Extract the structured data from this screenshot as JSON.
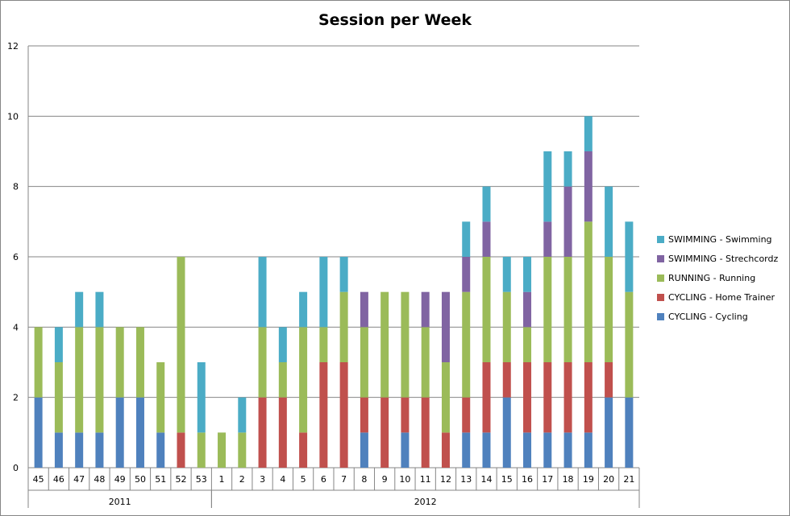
{
  "chart_data": {
    "type": "bar",
    "stacked": true,
    "title": "Session per Week",
    "xlabel": "",
    "ylabel": "",
    "ylim": [
      0,
      12
    ],
    "yticks": [
      0,
      2,
      4,
      6,
      8,
      10,
      12
    ],
    "grid": true,
    "legend_position": "right",
    "categories": [
      "45",
      "46",
      "47",
      "48",
      "49",
      "50",
      "51",
      "52",
      "53",
      "1",
      "2",
      "3",
      "4",
      "5",
      "6",
      "7",
      "8",
      "9",
      "10",
      "11",
      "12",
      "13",
      "14",
      "15",
      "16",
      "17",
      "18",
      "19",
      "20",
      "21"
    ],
    "groups": [
      {
        "label": "2011",
        "start": 0,
        "count": 9
      },
      {
        "label": "2012",
        "start": 9,
        "count": 21
      }
    ],
    "series": [
      {
        "name": "CYCLING - Cycling",
        "color": "#4F81BD",
        "values": [
          2,
          1,
          1,
          1,
          2,
          2,
          1,
          0,
          0,
          0,
          0,
          0,
          0,
          0,
          0,
          0,
          1,
          0,
          1,
          0,
          0,
          1,
          1,
          2,
          1,
          1,
          1,
          1,
          2,
          2
        ]
      },
      {
        "name": "CYCLING - Home Trainer",
        "color": "#C0504D",
        "values": [
          0,
          0,
          0,
          0,
          0,
          0,
          0,
          1,
          0,
          0,
          0,
          2,
          2,
          1,
          3,
          3,
          1,
          2,
          1,
          2,
          1,
          1,
          2,
          1,
          2,
          2,
          2,
          2,
          1,
          0
        ]
      },
      {
        "name": "RUNNING - Running",
        "color": "#9BBB59",
        "values": [
          2,
          2,
          3,
          3,
          2,
          2,
          2,
          5,
          1,
          1,
          1,
          2,
          1,
          3,
          1,
          2,
          2,
          3,
          3,
          2,
          2,
          3,
          3,
          2,
          1,
          3,
          3,
          4,
          3,
          3
        ]
      },
      {
        "name": "SWIMMING - Strechcordz",
        "color": "#8064A2",
        "values": [
          0,
          0,
          0,
          0,
          0,
          0,
          0,
          0,
          0,
          0,
          0,
          0,
          0,
          0,
          0,
          0,
          1,
          0,
          0,
          1,
          2,
          1,
          1,
          0,
          1,
          1,
          2,
          2,
          0,
          0
        ]
      },
      {
        "name": "SWIMMING - Swimming",
        "color": "#4BACC6",
        "values": [
          0,
          1,
          1,
          1,
          0,
          0,
          0,
          0,
          2,
          0,
          1,
          2,
          1,
          1,
          2,
          1,
          0,
          0,
          0,
          0,
          0,
          1,
          1,
          1,
          1,
          2,
          1,
          1,
          2,
          2
        ]
      }
    ]
  }
}
